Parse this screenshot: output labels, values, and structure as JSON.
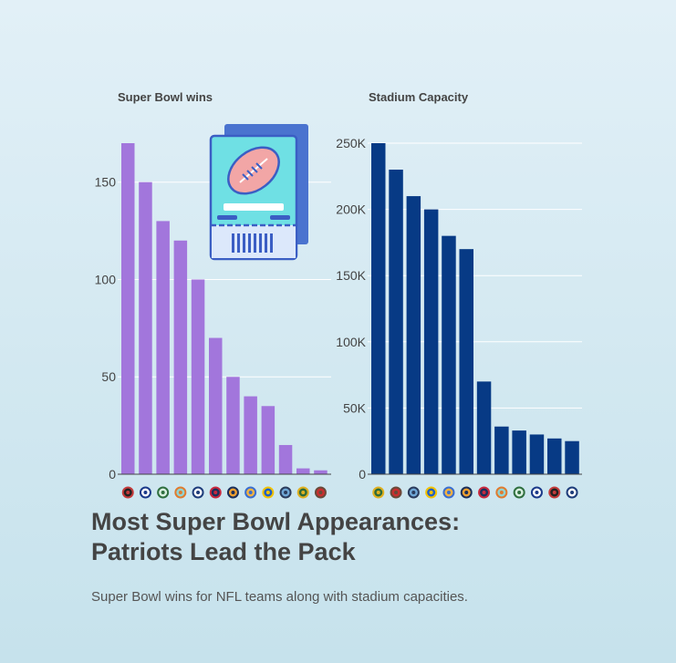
{
  "title_line1": "Most Super Bowl Appearances:",
  "title_line2": "Patriots Lead the Pack",
  "subtitle": "Super Bowl wins for NFL teams along with stadium capacities.",
  "colors": {
    "wins_bar": "#a276dc",
    "capacity_bar": "#073a85",
    "axis_text": "#444444",
    "grid": "#ffffff"
  },
  "chart_data": [
    {
      "type": "bar",
      "title": "Super Bowl wins",
      "xlabel": "",
      "ylabel": "",
      "ylim": [
        0,
        170
      ],
      "yticks": [
        "0",
        "50",
        "100",
        "150"
      ],
      "grid": true,
      "categories": [
        "Raiders logo",
        "Patriots logo",
        "Eagles logo",
        "Dolphins logo",
        "Cowboys logo",
        "Texans logo",
        "Bears logo",
        "Broncos logo",
        "Vikings logo",
        "Seahawks logo",
        "Packers logo",
        "Buccaneers logo"
      ],
      "values": [
        170,
        150,
        130,
        120,
        100,
        70,
        50,
        40,
        35,
        15,
        3,
        2
      ]
    },
    {
      "type": "bar",
      "title": "Stadium Capacity",
      "xlabel": "",
      "ylabel": "",
      "ylim": [
        0,
        250000
      ],
      "yticks": [
        "0",
        "50K",
        "100K",
        "150K",
        "200K",
        "250K"
      ],
      "grid": true,
      "categories": [
        "Packers logo",
        "Buccaneers logo",
        "Seahawks logo",
        "Vikings logo",
        "Broncos logo",
        "Bears logo",
        "Texans logo",
        "Dolphins logo",
        "Eagles logo",
        "Patriots logo",
        "Raiders logo",
        "Cowboys logo"
      ],
      "values": [
        250000,
        230000,
        210000,
        200000,
        180000,
        170000,
        70000,
        36000,
        33000,
        30000,
        27000,
        25000
      ]
    }
  ]
}
